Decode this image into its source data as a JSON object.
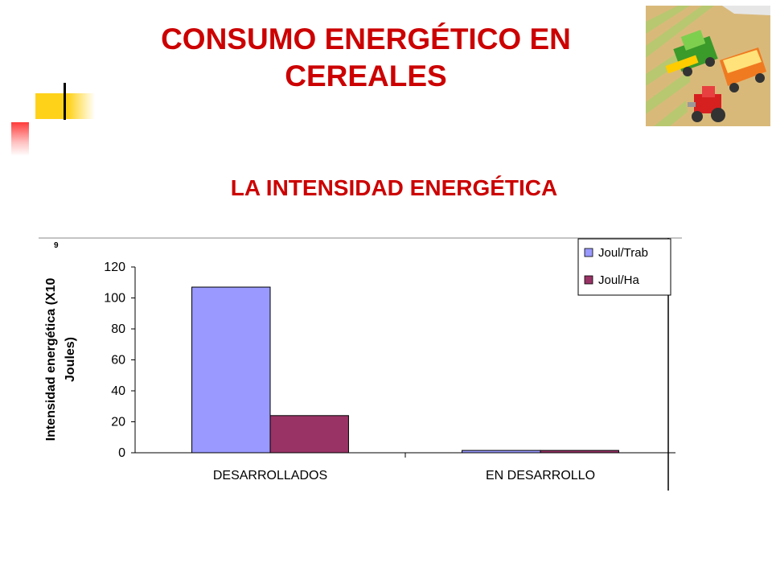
{
  "slide": {
    "title_line1": "CONSUMO ENERGÉTICO EN",
    "title_line2": "CEREALES",
    "subtitle": "LA INTENSIDAD ENERGÉTICA"
  },
  "colors": {
    "title": "#cc0000",
    "series1": "#9999ff",
    "series2": "#993366"
  },
  "clipart": {
    "icon": "harvester-tractor-clipart"
  },
  "chart_data": {
    "type": "bar",
    "categories": [
      "DESARROLLADOS",
      "EN DESARROLLO"
    ],
    "series": [
      {
        "name": "Joul/Trab",
        "values": [
          107,
          1.5
        ]
      },
      {
        "name": "Joul/Ha",
        "values": [
          24,
          1.5
        ]
      }
    ],
    "ylabel_line1": "Intensidad energética (X10",
    "ylabel_sup": "9",
    "ylabel_line2": "Joules)",
    "ylim": [
      0,
      120
    ],
    "yticks": [
      "0",
      "20",
      "40",
      "60",
      "80",
      "100",
      "120"
    ],
    "grid": false,
    "legend": "top-right"
  }
}
